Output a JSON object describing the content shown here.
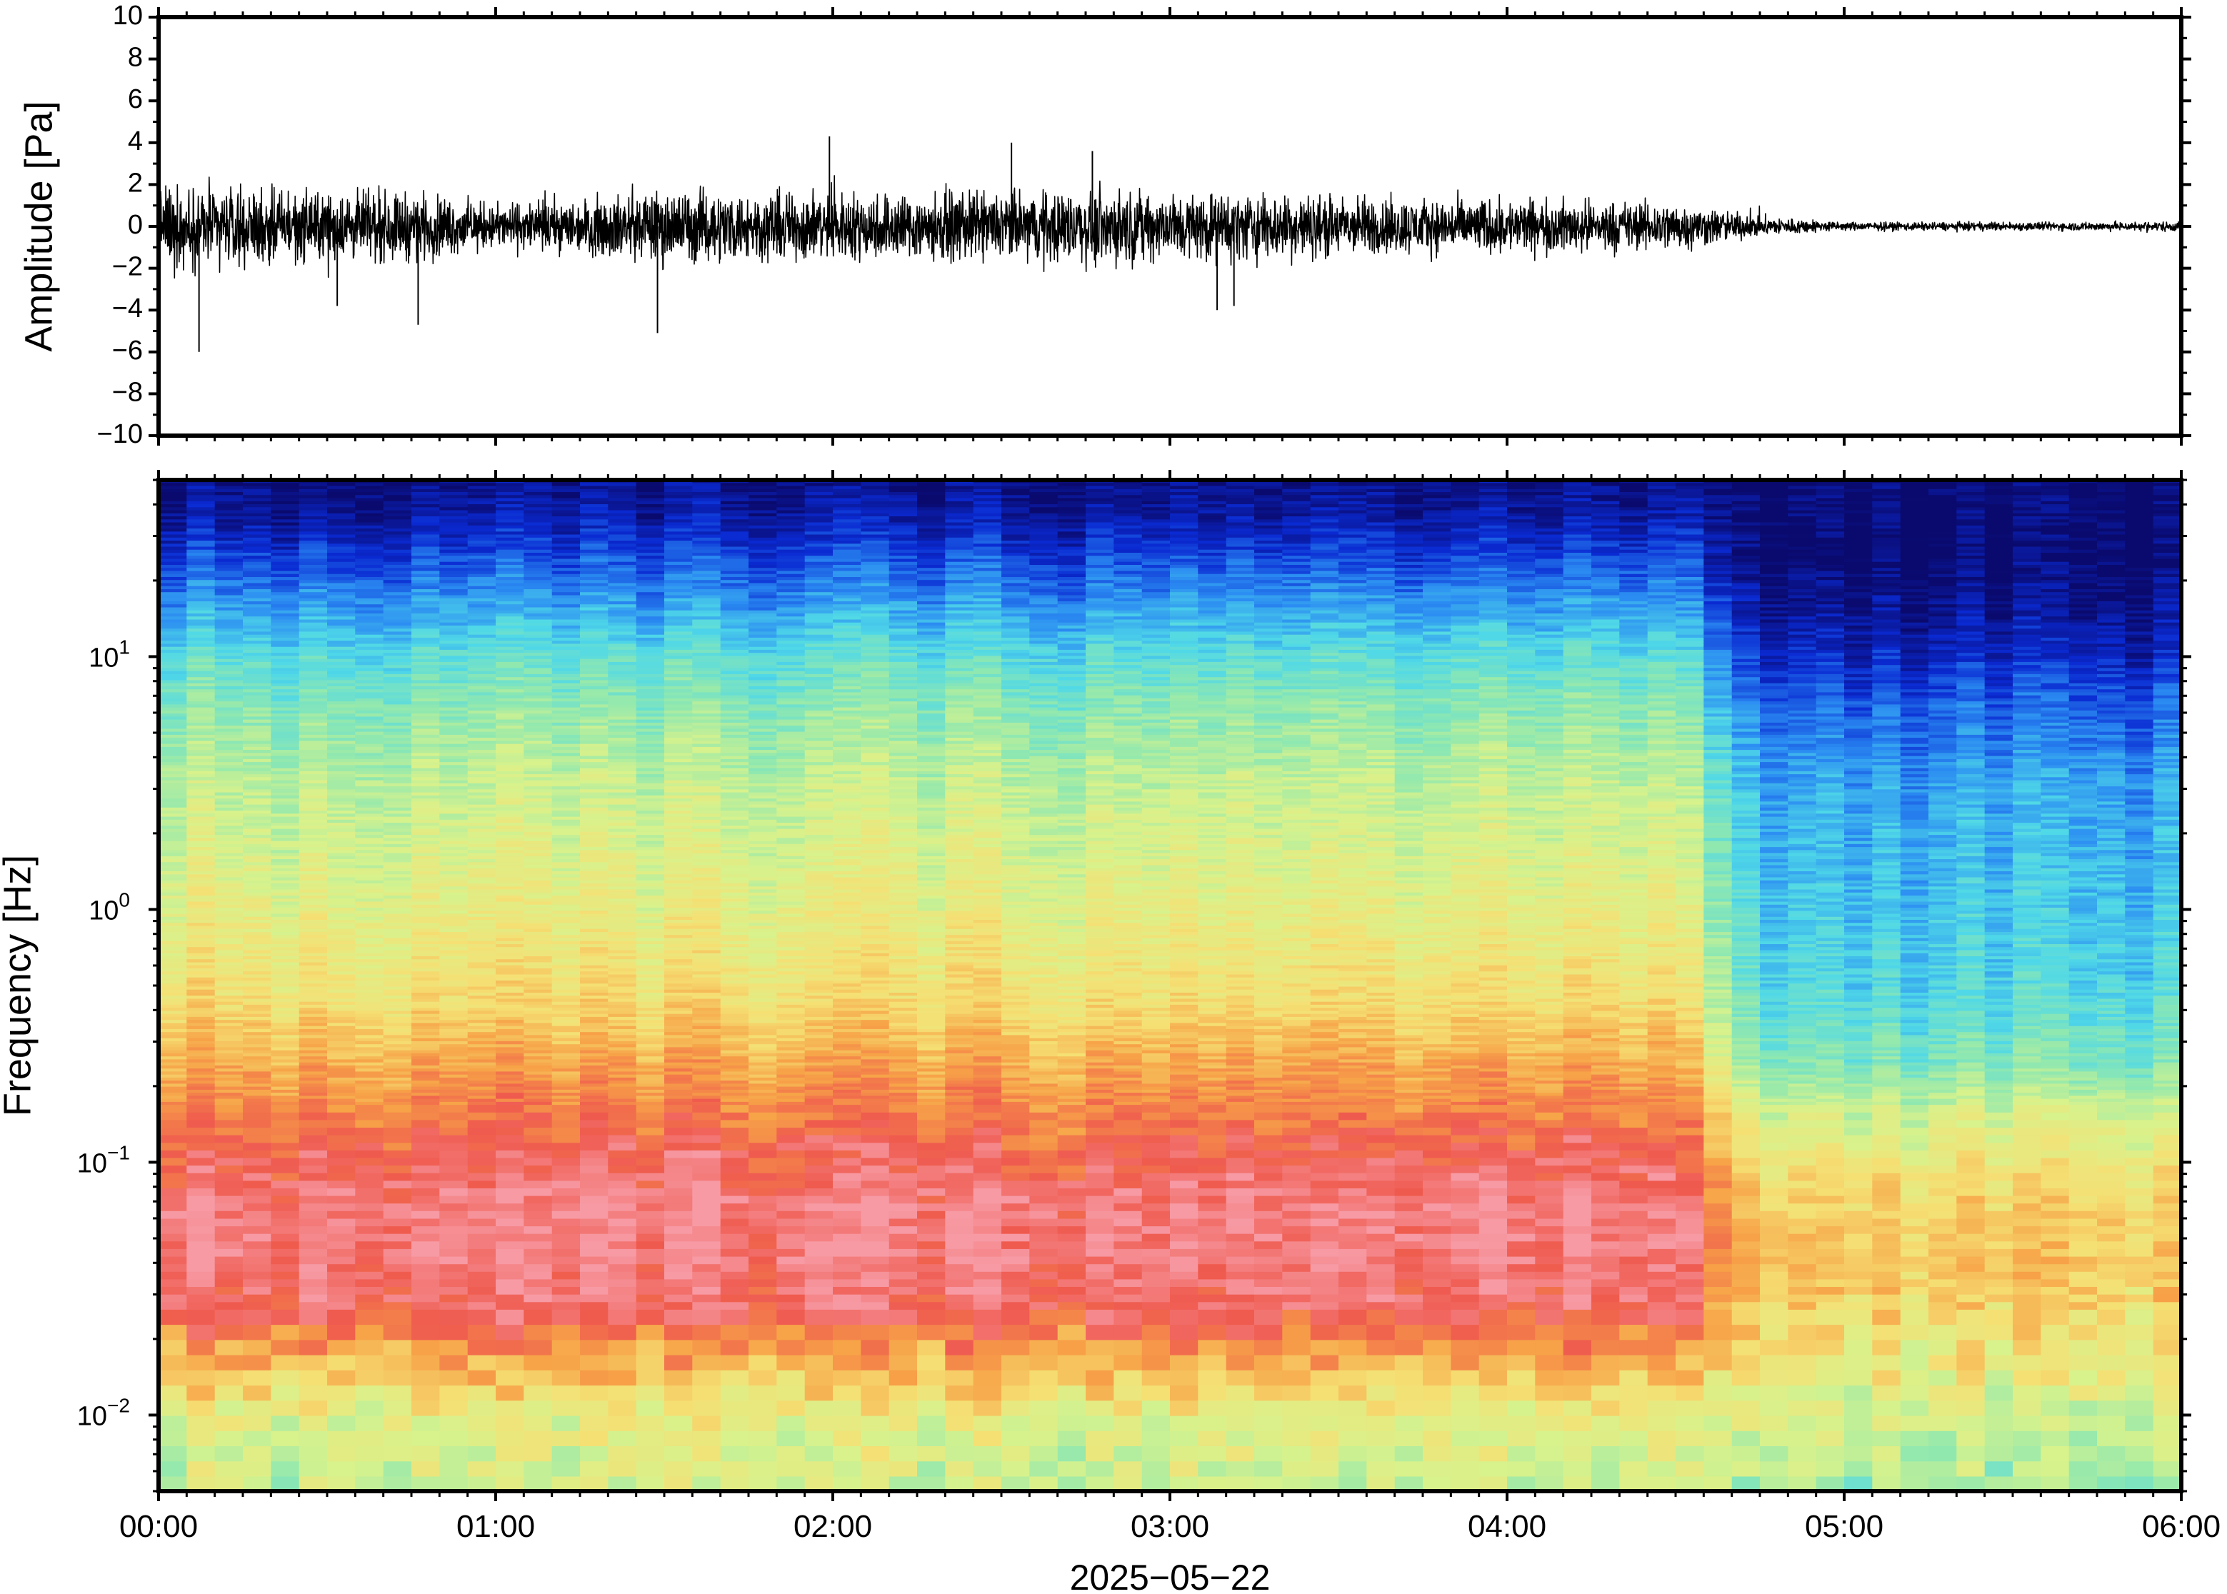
{
  "chart_data": [
    {
      "type": "line",
      "title": "",
      "ylabel": "Amplitude [Pa]",
      "ylim": [
        -10,
        10
      ],
      "yticks": [
        "10",
        "8",
        "6",
        "4",
        "2",
        "0",
        "−2",
        "−4",
        "−6",
        "−8",
        "−10"
      ],
      "ytick_values": [
        10,
        8,
        6,
        4,
        2,
        0,
        -2,
        -4,
        -6,
        -8,
        -10
      ],
      "xlim": [
        "00:00",
        "06:00"
      ],
      "grid": false,
      "series": [
        {
          "color": "#000000",
          "envelope_time_h": [
            0.0,
            0.25,
            0.5,
            0.75,
            1.0,
            1.25,
            1.5,
            1.75,
            2.0,
            2.25,
            2.5,
            2.75,
            3.0,
            3.25,
            3.5,
            3.75,
            4.0,
            4.25,
            4.5,
            4.75,
            5.0,
            5.25,
            5.5,
            5.75,
            6.0
          ],
          "envelope_amplitude": [
            2.5,
            2.2,
            2.0,
            2.0,
            1.3,
            1.6,
            2.2,
            2.0,
            2.0,
            2.0,
            2.0,
            2.2,
            2.0,
            2.0,
            1.8,
            1.6,
            1.6,
            1.5,
            1.4,
            0.6,
            0.25,
            0.25,
            0.25,
            0.25,
            0.3
          ],
          "peaks": [
            {
              "t": 0.12,
              "v": -6.0
            },
            {
              "t": 0.53,
              "v": -3.8
            },
            {
              "t": 0.77,
              "v": -4.7
            },
            {
              "t": 1.48,
              "v": -5.1
            },
            {
              "t": 1.99,
              "v": 4.3
            },
            {
              "t": 2.53,
              "v": 4.0
            },
            {
              "t": 2.77,
              "v": 3.6
            },
            {
              "t": 3.14,
              "v": -4.0
            },
            {
              "t": 3.19,
              "v": -3.8
            }
          ]
        }
      ]
    },
    {
      "type": "heatmap",
      "title": "",
      "ylabel": "Frequency [Hz]",
      "xlabel": "2025−05−22",
      "yscale": "log",
      "ylim": [
        0.005,
        50
      ],
      "yticks": [
        {
          "base": "10",
          "exp": "−2",
          "value": 0.01
        },
        {
          "base": "10",
          "exp": "−1",
          "value": 0.1
        },
        {
          "base": "10",
          "exp": "0",
          "value": 1
        },
        {
          "base": "10",
          "exp": "1",
          "value": 10
        }
      ],
      "xticks": [
        "00:00",
        "01:00",
        "02:00",
        "03:00",
        "04:00",
        "05:00",
        "06:00"
      ],
      "xtick_hours": [
        0,
        1,
        2,
        3,
        4,
        5,
        6
      ],
      "colormap": [
        "#0a0a6e",
        "#0a2ad2",
        "#2b8cf2",
        "#4fd8e8",
        "#8fe8b0",
        "#d8f28c",
        "#f5e074",
        "#f7a348",
        "#ef5a4e",
        "#f79aa4"
      ],
      "regime_change_hour": 4.6,
      "level_before": "low frequencies warm (red/pink peak near 0.05–0.1 Hz), cooling to blue above ~20 Hz",
      "level_after": "overall quieter: orange/yellow near 0.05 Hz, blue above ~0.3 Hz, dark navy above ~10 Hz"
    }
  ]
}
